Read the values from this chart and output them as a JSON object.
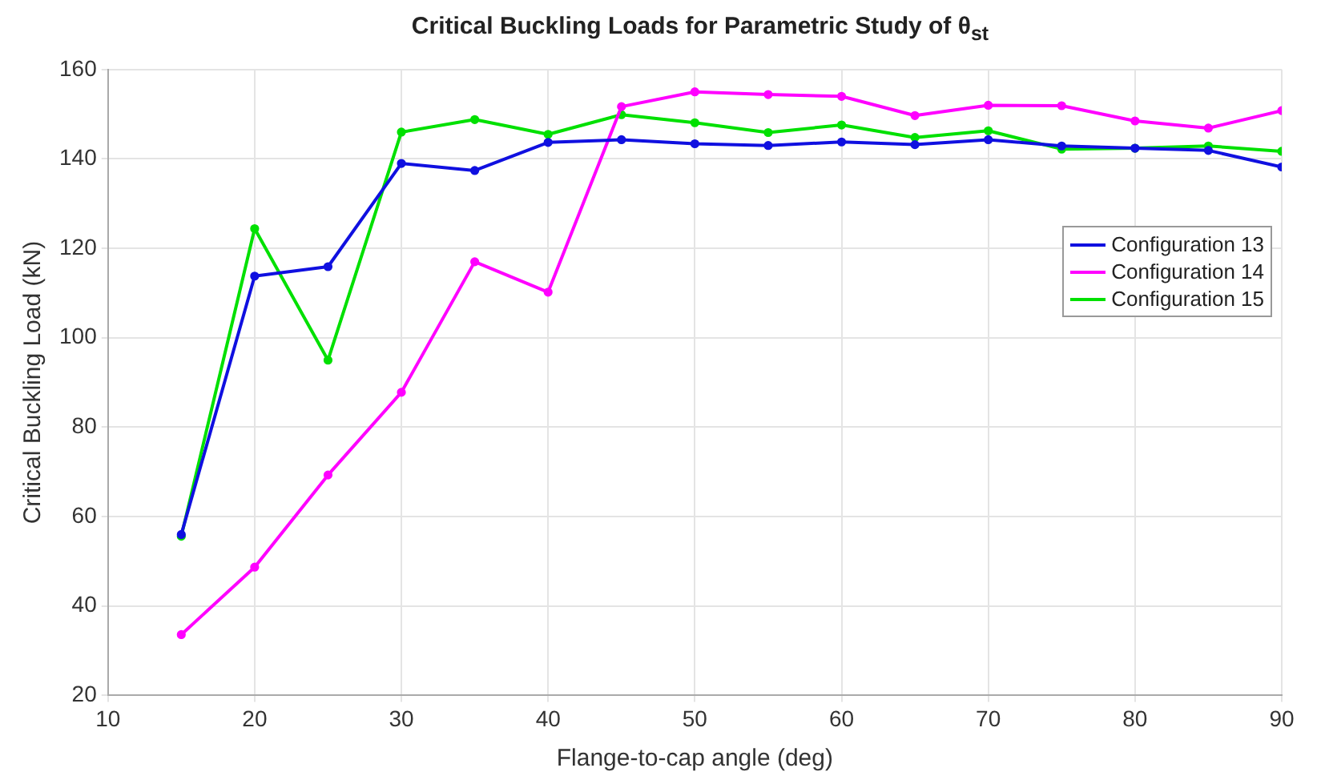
{
  "chart_data": {
    "type": "line",
    "title": "Critical Buckling Loads for Parametric Study of θ$_{st}$",
    "xlabel": "Flange-to-cap angle (deg)",
    "ylabel": "Critical Buckling Load (kN)",
    "x": [
      15,
      20,
      25,
      30,
      35,
      40,
      45,
      50,
      55,
      60,
      65,
      70,
      75,
      80,
      85,
      90
    ],
    "series": [
      {
        "name": "Configuration 13",
        "color": "#1010e0",
        "values": [
          56,
          113.8,
          115.9,
          139,
          137.4,
          143.7,
          144.3,
          143.4,
          143,
          143.8,
          143.2,
          144.3,
          142.9,
          142.4,
          141.9,
          138.2
        ]
      },
      {
        "name": "Configuration 14",
        "color": "#ff00ff",
        "values": [
          33.6,
          48.7,
          69.3,
          87.8,
          117,
          110.2,
          151.7,
          155,
          154.4,
          154,
          149.7,
          152,
          151.9,
          148.5,
          146.9,
          150.8
        ]
      },
      {
        "name": "Configuration 15",
        "color": "#00e000",
        "values": [
          55.6,
          124.4,
          95,
          146,
          148.8,
          145.5,
          149.9,
          148.1,
          145.9,
          147.6,
          144.8,
          146.3,
          142.2,
          142.4,
          142.9,
          141.7
        ]
      }
    ],
    "xlim": [
      10,
      90
    ],
    "xticks": [
      10,
      20,
      30,
      40,
      50,
      60,
      70,
      80,
      90
    ],
    "ylim": [
      20,
      160
    ],
    "yticks": [
      20,
      40,
      60,
      80,
      100,
      120,
      140,
      160
    ],
    "grid": true,
    "legend": "top right",
    "marker": "circle",
    "line_style": "solid"
  }
}
